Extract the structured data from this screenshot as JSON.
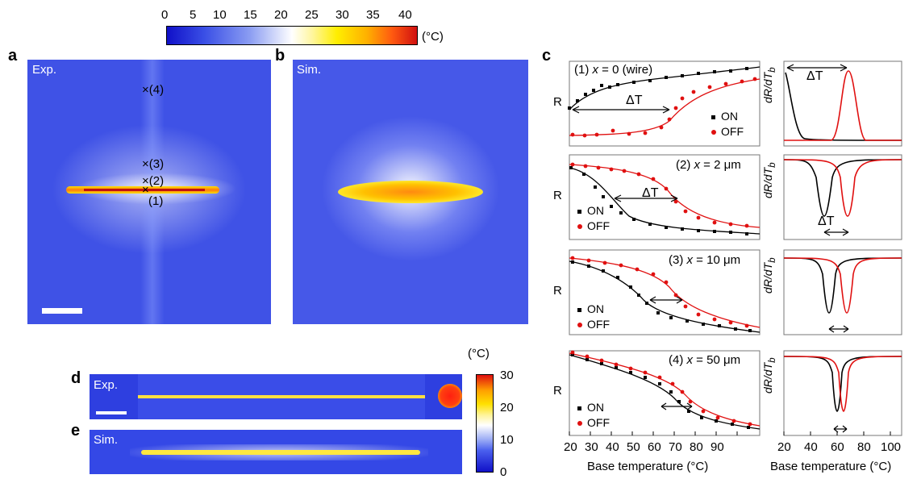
{
  "colorbar_top": {
    "ticks": [
      "0",
      "5",
      "10",
      "15",
      "20",
      "25",
      "30",
      "35",
      "40"
    ],
    "unit": "(°C)"
  },
  "panel_a": {
    "letter": "a",
    "label": "Exp.",
    "markers": [
      {
        "id": "(1)",
        "label": "(1)"
      },
      {
        "id": "(2)",
        "label": "(2)"
      },
      {
        "id": "(3)",
        "label": "(3)"
      },
      {
        "id": "(4)",
        "label": "(4)"
      }
    ],
    "marker_glyph": "×"
  },
  "panel_b": {
    "letter": "b",
    "label": "Sim."
  },
  "panel_c": {
    "letter": "c",
    "xlabel": "Base temperature (°C)",
    "ylabel_left": "R",
    "ylabel_right": "dR/dT",
    "ylabel_right_sub": "b",
    "x_ticks": [
      "20",
      "30",
      "40",
      "50",
      "60",
      "70",
      "80",
      "90"
    ],
    "x_ticks_right": [
      "20",
      "40",
      "60",
      "80",
      "100"
    ],
    "delta_t": "ΔT",
    "legend": {
      "on": "ON",
      "off": "OFF"
    },
    "rows": [
      {
        "title_num": "(1)",
        "title_var": "x",
        "title_rest": " = 0 (wire)"
      },
      {
        "title_num": "(2)",
        "title_var": "x",
        "title_rest": " = 2 μm"
      },
      {
        "title_num": "(3)",
        "title_var": "x",
        "title_rest": " = 10 μm"
      },
      {
        "title_num": "(4)",
        "title_var": "x",
        "title_rest": " = 50 μm"
      }
    ]
  },
  "panel_d": {
    "letter": "d",
    "label": "Exp."
  },
  "panel_e": {
    "letter": "e",
    "label": "Sim."
  },
  "colorbar_small": {
    "unit": "(°C)",
    "ticks": [
      "30",
      "20",
      "10",
      "0"
    ]
  },
  "colors": {
    "on": "#000000",
    "off": "#e01010",
    "background_blue": "#3f55e8"
  }
}
